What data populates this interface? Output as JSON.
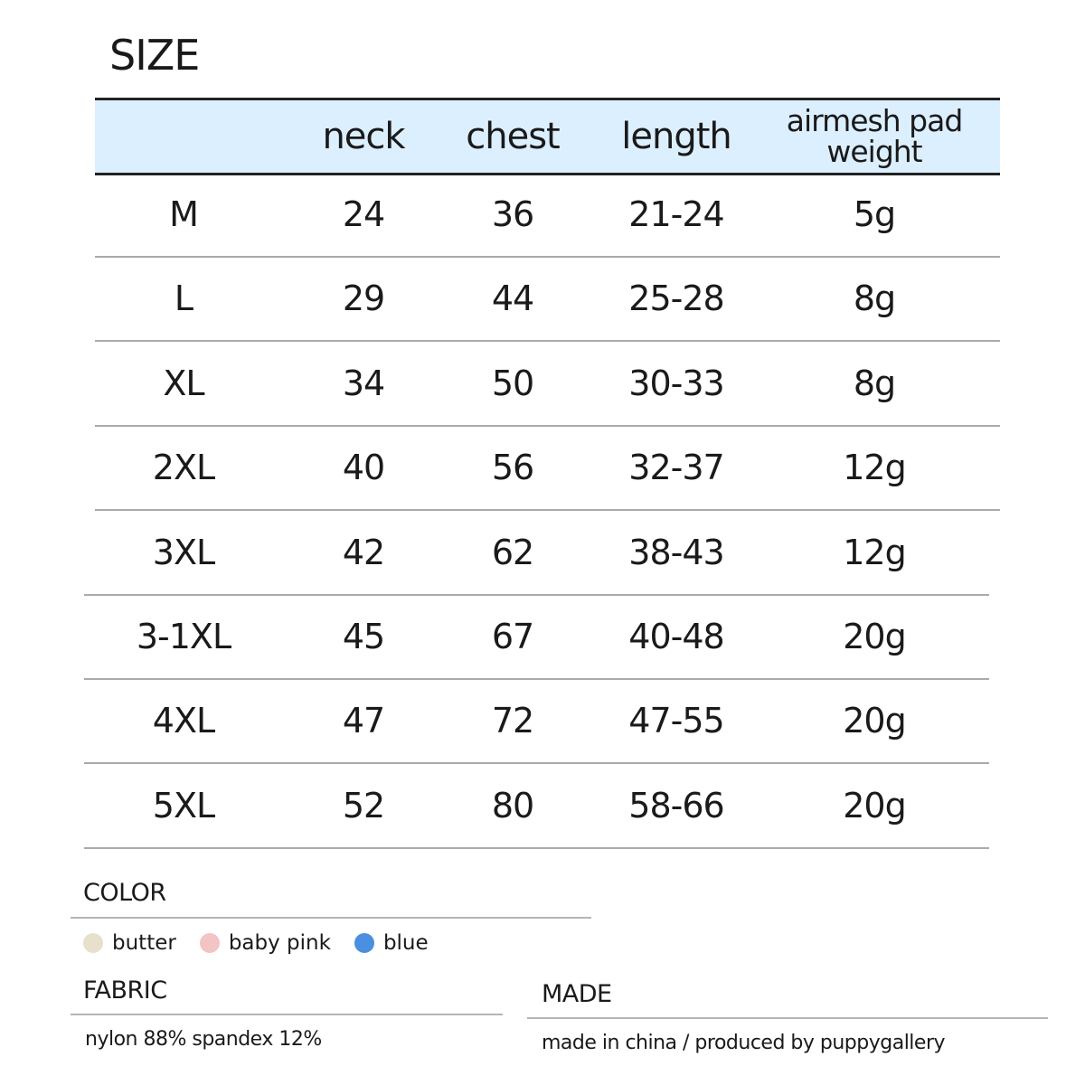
{
  "title": "SIZE",
  "table": {
    "headers": [
      "",
      "neck",
      "chest",
      "length",
      "airmesh pad weight"
    ],
    "rows": [
      [
        "M",
        "24",
        "36",
        "21-24",
        "5g"
      ],
      [
        "L",
        "29",
        "44",
        "25-28",
        "8g"
      ],
      [
        "XL",
        "34",
        "50",
        "30-33",
        "8g"
      ],
      [
        "2XL",
        "40",
        "56",
        "32-37",
        "12g"
      ],
      [
        "3XL",
        "42",
        "62",
        "38-43",
        "12g"
      ],
      [
        "3-1XL",
        "45",
        "67",
        "40-48",
        "20g"
      ],
      [
        "4XL",
        "47",
        "72",
        "47-55",
        "20g"
      ],
      [
        "5XL",
        "52",
        "80",
        "58-66",
        "20g"
      ]
    ],
    "header_bg": "#dcefff"
  },
  "color": {
    "heading": "COLOR",
    "options": [
      {
        "label": "butter",
        "hex": "#e6e0cc"
      },
      {
        "label": "baby pink",
        "hex": "#f2c4c4"
      },
      {
        "label": "blue",
        "hex": "#4a8fe0"
      }
    ]
  },
  "fabric": {
    "heading": "FABRIC",
    "text": "nylon 88% spandex 12%"
  },
  "made": {
    "heading": "MADE",
    "text": "made in china / produced by puppygallery"
  }
}
